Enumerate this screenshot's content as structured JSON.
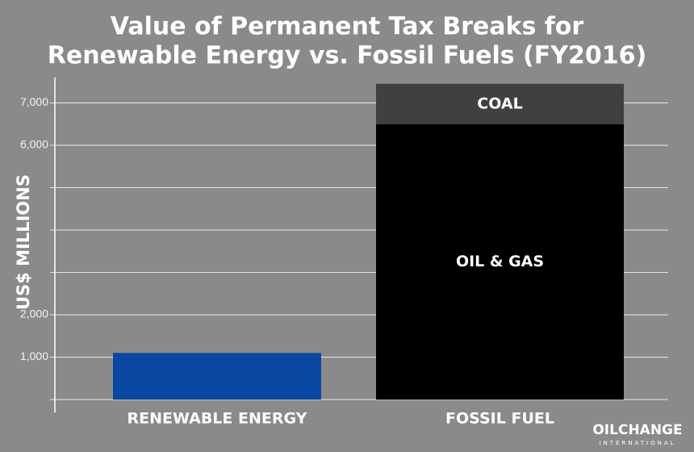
{
  "chart_data": {
    "type": "stacked_bar",
    "title": [
      "Value of Permanent Tax Breaks for",
      "Renewable Energy vs. Fossil Fuels (FY2016)"
    ],
    "y_label": "US$ MILLIONS",
    "categories": [
      "RENEWABLE ENERGY",
      "FOSSIL FUEL"
    ],
    "series": [
      {
        "color": "#0a47a0",
        "values": [
          1100,
          null
        ]
      },
      {
        "name": "OIL & GAS",
        "color": "#000000",
        "values": [
          null,
          6500
        ]
      },
      {
        "name": "COAL",
        "color": "#404040",
        "values": [
          null,
          950
        ]
      }
    ],
    "ylim": [
      0,
      7600
    ],
    "yticks": [
      {
        "value": 0,
        "label": null
      },
      {
        "value": 1000,
        "label": "1,000"
      },
      {
        "value": 2000,
        "label": "2,000"
      },
      {
        "value": 3000,
        "label": null
      },
      {
        "value": 4000,
        "label": null
      },
      {
        "value": 5000,
        "label": null
      },
      {
        "value": 6000,
        "label": "6,000"
      },
      {
        "value": 7000,
        "label": "7,000"
      }
    ],
    "grid": true,
    "logo": [
      "OILCHANGE",
      "INTERNATIONAL"
    ]
  }
}
